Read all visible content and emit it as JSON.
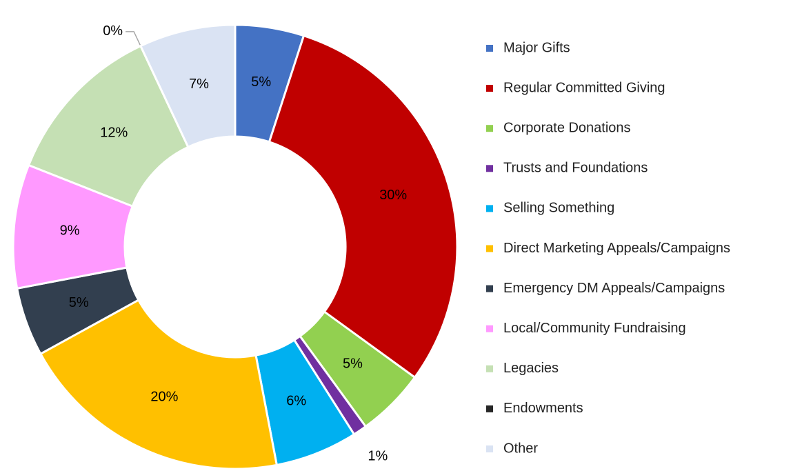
{
  "chart_data": {
    "type": "donut",
    "categories": [
      "Major Gifts",
      "Regular Committed Giving",
      "Corporate Donations",
      "Trusts and Foundations",
      "Selling Something",
      "Direct Marketing Appeals/Campaigns",
      "Emergency DM Appeals/Campaigns",
      "Local/Community Fundraising",
      "Legacies",
      "Endowments",
      "Other"
    ],
    "values": [
      5,
      30,
      5,
      1,
      6,
      20,
      5,
      9,
      12,
      0,
      7
    ],
    "value_labels": [
      "5%",
      "30%",
      "5%",
      "1%",
      "6%",
      "20%",
      "5%",
      "9%",
      "12%",
      "0%",
      "7%"
    ],
    "colors": [
      "#4472c4",
      "#c00000",
      "#92d050",
      "#7030a0",
      "#00b0f0",
      "#ffc000",
      "#323f4f",
      "#ff99ff",
      "#c5e0b4",
      "#262626",
      "#dae3f3"
    ],
    "legend": "right"
  }
}
